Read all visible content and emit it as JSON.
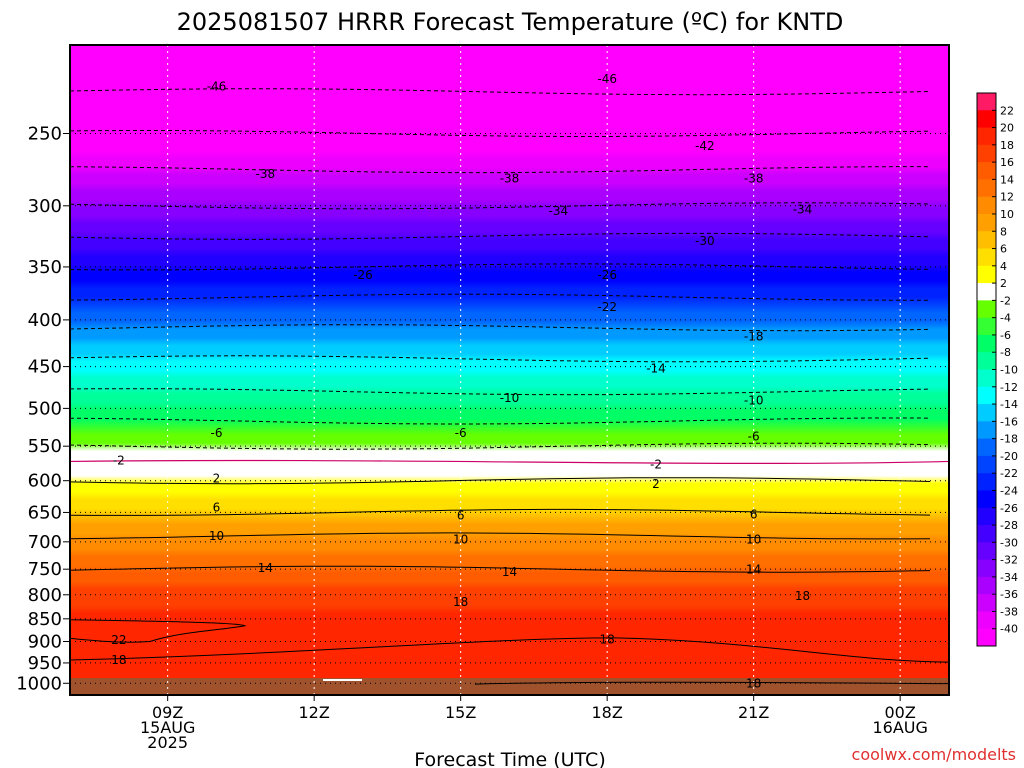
{
  "chart_data": {
    "type": "heatmap",
    "title": "2025081507 HRRR Forecast Temperature (ºC) for KNTD",
    "xlabel": "Forecast Time (UTC)",
    "ylabel": "",
    "credit": "coolwx.com/modelts",
    "y_scale": "log",
    "ylim": [
      1030,
      200
    ],
    "xlim": [
      "2025-08-15 07Z",
      "2025-08-16 01Z"
    ],
    "x_ticks": [
      {
        "label": "09Z",
        "label2": "15AUG",
        "label3": "2025"
      },
      {
        "label": "12Z",
        "label2": "",
        "label3": ""
      },
      {
        "label": "15Z",
        "label2": "",
        "label3": ""
      },
      {
        "label": "18Z",
        "label2": "",
        "label3": ""
      },
      {
        "label": "21Z",
        "label2": "",
        "label3": ""
      },
      {
        "label": "00Z",
        "label2": "16AUG",
        "label3": ""
      }
    ],
    "y_ticks": [
      "250",
      "300",
      "350",
      "400",
      "450",
      "500",
      "550",
      "600",
      "650",
      "700",
      "750",
      "800",
      "850",
      "900",
      "950",
      "1000"
    ],
    "grid": true,
    "legend": "colorbar right",
    "colorbar_labels": [
      "22",
      "20",
      "18",
      "16",
      "14",
      "12",
      "10",
      "8",
      "6",
      "4",
      "2",
      "-2",
      "-4",
      "-6",
      "-8",
      "-10",
      "-12",
      "-14",
      "-16",
      "-18",
      "-20",
      "-22",
      "-24",
      "-26",
      "-28",
      "-30",
      "-32",
      "-34",
      "-36",
      "-38",
      "-40"
    ],
    "colorbar_colors": [
      "#ff1a66",
      "#ff0000",
      "#ff2600",
      "#ff4000",
      "#ff5c00",
      "#ff7000",
      "#ff8c00",
      "#ffa000",
      "#ffbf00",
      "#ffdf00",
      "#ffff00",
      "#ffffff",
      "#66ff00",
      "#33ff33",
      "#00ff66",
      "#00ff99",
      "#00ffcc",
      "#00ffff",
      "#00ccff",
      "#0099ff",
      "#0066ff",
      "#0044ff",
      "#0022ff",
      "#0000ff",
      "#2200ff",
      "#4400ff",
      "#6600ff",
      "#8800ff",
      "#aa00ff",
      "#cc00ff",
      "#ee00ff",
      "#ff00ff"
    ],
    "ground_color": "#a0522d",
    "temperature_profile": [
      {
        "pressure_hPa": 1000,
        "temp_C": 20
      },
      {
        "pressure_hPa": 950,
        "temp_C": 19
      },
      {
        "pressure_hPa": 900,
        "temp_C": 20
      },
      {
        "pressure_hPa": 850,
        "temp_C": 19
      },
      {
        "pressure_hPa": 800,
        "temp_C": 17
      },
      {
        "pressure_hPa": 750,
        "temp_C": 14
      },
      {
        "pressure_hPa": 700,
        "temp_C": 11
      },
      {
        "pressure_hPa": 650,
        "temp_C": 6
      },
      {
        "pressure_hPa": 600,
        "temp_C": 2
      },
      {
        "pressure_hPa": 550,
        "temp_C": -2
      },
      {
        "pressure_hPa": 500,
        "temp_C": -8
      },
      {
        "pressure_hPa": 450,
        "temp_C": -13
      },
      {
        "pressure_hPa": 400,
        "temp_C": -19
      },
      {
        "pressure_hPa": 350,
        "temp_C": -26
      },
      {
        "pressure_hPa": 300,
        "temp_C": -34
      },
      {
        "pressure_hPa": 250,
        "temp_C": -42
      },
      {
        "pressure_hPa": 225,
        "temp_C": -46
      }
    ],
    "contour_labels": [
      {
        "text": "-46",
        "time": "10Z",
        "pressure": 222
      },
      {
        "text": "-46",
        "time": "18Z",
        "pressure": 218
      },
      {
        "text": "-42",
        "time": "20Z",
        "pressure": 258
      },
      {
        "text": "-38",
        "time": "11Z",
        "pressure": 277
      },
      {
        "text": "-38",
        "time": "16Z",
        "pressure": 280
      },
      {
        "text": "-38",
        "time": "21Z",
        "pressure": 280
      },
      {
        "text": "-34",
        "time": "17Z",
        "pressure": 304
      },
      {
        "text": "-34",
        "time": "22Z",
        "pressure": 303
      },
      {
        "text": "-30",
        "time": "20Z",
        "pressure": 328
      },
      {
        "text": "-26",
        "time": "13Z",
        "pressure": 357
      },
      {
        "text": "-26",
        "time": "18Z",
        "pressure": 357
      },
      {
        "text": "-22",
        "time": "18Z",
        "pressure": 387
      },
      {
        "text": "-18",
        "time": "21Z",
        "pressure": 417
      },
      {
        "text": "-14",
        "time": "19Z",
        "pressure": 452
      },
      {
        "text": "-10",
        "time": "16Z",
        "pressure": 487
      },
      {
        "text": "-10",
        "time": "21Z",
        "pressure": 490
      },
      {
        "text": "-6",
        "time": "10Z",
        "pressure": 532
      },
      {
        "text": "-6",
        "time": "15Z",
        "pressure": 532
      },
      {
        "text": "-6",
        "time": "21Z",
        "pressure": 537
      },
      {
        "text": "-2",
        "time": "08Z",
        "pressure": 570
      },
      {
        "text": "-2",
        "time": "19Z",
        "pressure": 576
      },
      {
        "text": "2",
        "time": "10Z",
        "pressure": 597
      },
      {
        "text": "2",
        "time": "19Z",
        "pressure": 605
      },
      {
        "text": "6",
        "time": "10Z",
        "pressure": 642
      },
      {
        "text": "6",
        "time": "15Z",
        "pressure": 655
      },
      {
        "text": "6",
        "time": "21Z",
        "pressure": 653
      },
      {
        "text": "10",
        "time": "10Z",
        "pressure": 690
      },
      {
        "text": "10",
        "time": "15Z",
        "pressure": 696
      },
      {
        "text": "10",
        "time": "21Z",
        "pressure": 696
      },
      {
        "text": "14",
        "time": "11Z",
        "pressure": 748
      },
      {
        "text": "14",
        "time": "16Z",
        "pressure": 755
      },
      {
        "text": "14",
        "time": "21Z",
        "pressure": 751
      },
      {
        "text": "18",
        "time": "15Z",
        "pressure": 815
      },
      {
        "text": "18",
        "time": "22Z",
        "pressure": 802
      },
      {
        "text": "18",
        "time": "18Z",
        "pressure": 895
      },
      {
        "text": "22",
        "time": "08Z",
        "pressure": 897
      },
      {
        "text": "18",
        "time": "08Z",
        "pressure": 943
      },
      {
        "text": "18",
        "time": "21Z",
        "pressure": 1000
      }
    ]
  }
}
